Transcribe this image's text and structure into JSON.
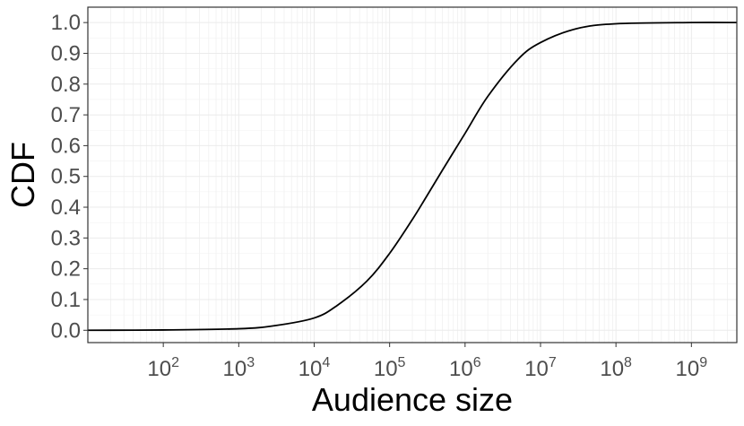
{
  "chart_data": {
    "type": "line",
    "xlabel": "Audience size",
    "ylabel": "CDF",
    "x_scale": "log10",
    "xlim": [
      10,
      4000000000
    ],
    "ylim": [
      -0.04,
      1.05
    ],
    "x_ticks": [
      {
        "base": "10",
        "exp": "2",
        "value": 100
      },
      {
        "base": "10",
        "exp": "3",
        "value": 1000
      },
      {
        "base": "10",
        "exp": "4",
        "value": 10000
      },
      {
        "base": "10",
        "exp": "5",
        "value": 100000
      },
      {
        "base": "10",
        "exp": "6",
        "value": 1000000
      },
      {
        "base": "10",
        "exp": "7",
        "value": 10000000
      },
      {
        "base": "10",
        "exp": "8",
        "value": 100000000
      },
      {
        "base": "10",
        "exp": "9",
        "value": 1000000000
      }
    ],
    "y_ticks": [
      "0.0",
      "0.1",
      "0.2",
      "0.3",
      "0.4",
      "0.5",
      "0.6",
      "0.7",
      "0.8",
      "0.9",
      "1.0"
    ],
    "grid": true,
    "series": [
      {
        "color": "#000000",
        "x": [
          10,
          100,
          1000,
          3000,
          10000,
          20000,
          50000,
          100000,
          200000,
          300000,
          500000,
          1000000,
          2000000,
          5000000,
          10000000,
          30000000,
          100000000,
          1000000000,
          4000000000
        ],
        "y": [
          0.0,
          0.001,
          0.005,
          0.015,
          0.04,
          0.08,
          0.16,
          0.25,
          0.36,
          0.43,
          0.52,
          0.64,
          0.76,
          0.88,
          0.935,
          0.98,
          0.996,
          1.0,
          1.0
        ]
      }
    ]
  }
}
